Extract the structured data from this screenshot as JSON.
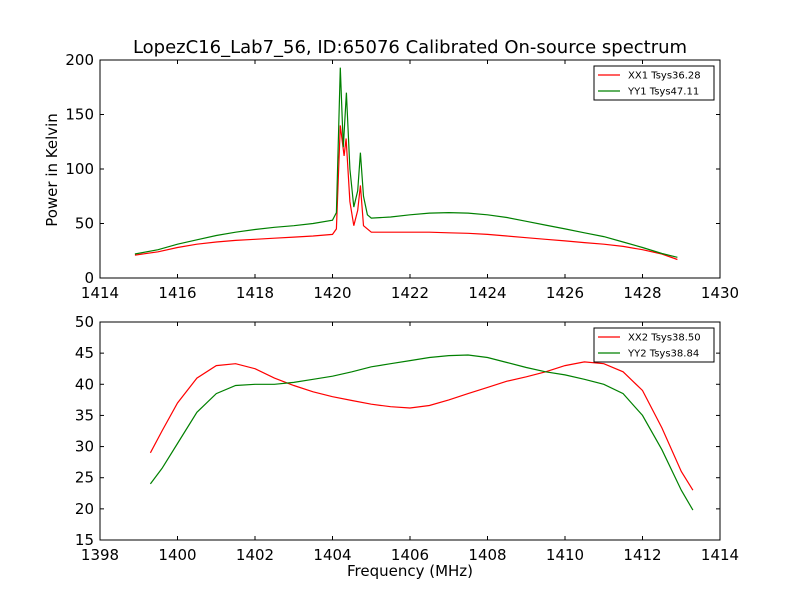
{
  "chart_data": [
    {
      "type": "line",
      "title": "LopezC16_Lab7_56, ID:65076 Calibrated On-source spectrum",
      "xlabel": "",
      "ylabel": "Power in Kelvin",
      "xlim": [
        1414,
        1430
      ],
      "ylim": [
        0,
        200
      ],
      "xticks": [
        1414,
        1416,
        1418,
        1420,
        1422,
        1424,
        1426,
        1428,
        1430
      ],
      "yticks": [
        0,
        50,
        100,
        150,
        200
      ],
      "grid": false,
      "legend_position": "top-right",
      "series": [
        {
          "name": "XX1 Tsys36.28",
          "color": "#ff0000",
          "points": [
            [
              1414.9,
              21
            ],
            [
              1415.5,
              24
            ],
            [
              1416,
              28
            ],
            [
              1416.5,
              31
            ],
            [
              1417,
              33
            ],
            [
              1417.5,
              34.5
            ],
            [
              1418,
              35.5
            ],
            [
              1418.5,
              36.5
            ],
            [
              1419,
              37.5
            ],
            [
              1419.5,
              38.5
            ],
            [
              1420,
              40
            ],
            [
              1420.1,
              45
            ],
            [
              1420.2,
              140
            ],
            [
              1420.3,
              112
            ],
            [
              1420.35,
              128
            ],
            [
              1420.45,
              70
            ],
            [
              1420.55,
              48
            ],
            [
              1420.65,
              62
            ],
            [
              1420.72,
              85
            ],
            [
              1420.8,
              48
            ],
            [
              1421,
              42
            ],
            [
              1421.5,
              42
            ],
            [
              1422,
              42
            ],
            [
              1422.5,
              42
            ],
            [
              1423,
              41.5
            ],
            [
              1423.5,
              41
            ],
            [
              1424,
              40
            ],
            [
              1424.5,
              38.5
            ],
            [
              1425,
              37
            ],
            [
              1425.5,
              35.5
            ],
            [
              1426,
              34
            ],
            [
              1426.5,
              32.5
            ],
            [
              1427,
              31
            ],
            [
              1427.5,
              29
            ],
            [
              1428,
              26
            ],
            [
              1428.5,
              22
            ],
            [
              1428.9,
              17
            ]
          ]
        },
        {
          "name": "YY1 Tsys47.11",
          "color": "#008000",
          "points": [
            [
              1414.9,
              22
            ],
            [
              1415.5,
              26
            ],
            [
              1416,
              31
            ],
            [
              1416.5,
              35
            ],
            [
              1417,
              39
            ],
            [
              1417.5,
              42
            ],
            [
              1418,
              44.5
            ],
            [
              1418.5,
              46.5
            ],
            [
              1419,
              48
            ],
            [
              1419.5,
              50
            ],
            [
              1420,
              53
            ],
            [
              1420.1,
              60
            ],
            [
              1420.2,
              193
            ],
            [
              1420.28,
              120
            ],
            [
              1420.36,
              170
            ],
            [
              1420.45,
              100
            ],
            [
              1420.55,
              65
            ],
            [
              1420.65,
              80
            ],
            [
              1420.72,
              115
            ],
            [
              1420.8,
              75
            ],
            [
              1420.9,
              58
            ],
            [
              1421,
              55
            ],
            [
              1421.5,
              56
            ],
            [
              1422,
              58
            ],
            [
              1422.5,
              59.5
            ],
            [
              1423,
              60
            ],
            [
              1423.5,
              59.5
            ],
            [
              1424,
              58
            ],
            [
              1424.5,
              55.5
            ],
            [
              1425,
              52
            ],
            [
              1425.5,
              48.5
            ],
            [
              1426,
              45
            ],
            [
              1426.5,
              41.5
            ],
            [
              1427,
              38
            ],
            [
              1427.5,
              33
            ],
            [
              1428,
              28
            ],
            [
              1428.5,
              22.5
            ],
            [
              1428.9,
              19
            ]
          ]
        }
      ]
    },
    {
      "type": "line",
      "title": "",
      "xlabel": "Frequency (MHz)",
      "ylabel": "",
      "xlim": [
        1398,
        1414
      ],
      "ylim": [
        15,
        50
      ],
      "xticks": [
        1398,
        1400,
        1402,
        1404,
        1406,
        1408,
        1410,
        1412,
        1414
      ],
      "yticks": [
        15,
        20,
        25,
        30,
        35,
        40,
        45,
        50
      ],
      "grid": false,
      "legend_position": "top-right",
      "series": [
        {
          "name": "XX2 Tsys38.50",
          "color": "#ff0000",
          "points": [
            [
              1399.3,
              29
            ],
            [
              1399.6,
              32.5
            ],
            [
              1400,
              37
            ],
            [
              1400.5,
              41
            ],
            [
              1401,
              43
            ],
            [
              1401.5,
              43.3
            ],
            [
              1402,
              42.5
            ],
            [
              1402.5,
              41
            ],
            [
              1403,
              39.8
            ],
            [
              1403.5,
              38.8
            ],
            [
              1404,
              38
            ],
            [
              1404.5,
              37.4
            ],
            [
              1405,
              36.8
            ],
            [
              1405.5,
              36.4
            ],
            [
              1406,
              36.2
            ],
            [
              1406.5,
              36.6
            ],
            [
              1407,
              37.5
            ],
            [
              1407.5,
              38.5
            ],
            [
              1408,
              39.5
            ],
            [
              1408.5,
              40.5
            ],
            [
              1409,
              41.2
            ],
            [
              1409.5,
              42
            ],
            [
              1410,
              43
            ],
            [
              1410.5,
              43.6
            ],
            [
              1411,
              43.3
            ],
            [
              1411.5,
              42
            ],
            [
              1412,
              39
            ],
            [
              1412.5,
              33
            ],
            [
              1413,
              26
            ],
            [
              1413.3,
              23
            ]
          ]
        },
        {
          "name": "YY2 Tsys38.84",
          "color": "#008000",
          "points": [
            [
              1399.3,
              24
            ],
            [
              1399.6,
              26.5
            ],
            [
              1400,
              30.5
            ],
            [
              1400.5,
              35.5
            ],
            [
              1401,
              38.5
            ],
            [
              1401.5,
              39.8
            ],
            [
              1402,
              40
            ],
            [
              1402.5,
              40
            ],
            [
              1403,
              40.3
            ],
            [
              1403.5,
              40.8
            ],
            [
              1404,
              41.3
            ],
            [
              1404.5,
              42
            ],
            [
              1405,
              42.8
            ],
            [
              1405.5,
              43.3
            ],
            [
              1406,
              43.8
            ],
            [
              1406.5,
              44.3
            ],
            [
              1407,
              44.6
            ],
            [
              1407.5,
              44.7
            ],
            [
              1408,
              44.3
            ],
            [
              1408.5,
              43.5
            ],
            [
              1409,
              42.7
            ],
            [
              1409.5,
              42
            ],
            [
              1410,
              41.5
            ],
            [
              1410.5,
              40.8
            ],
            [
              1411,
              40
            ],
            [
              1411.5,
              38.5
            ],
            [
              1412,
              35
            ],
            [
              1412.5,
              29.5
            ],
            [
              1413,
              23
            ],
            [
              1413.3,
              19.8
            ]
          ]
        }
      ]
    }
  ]
}
